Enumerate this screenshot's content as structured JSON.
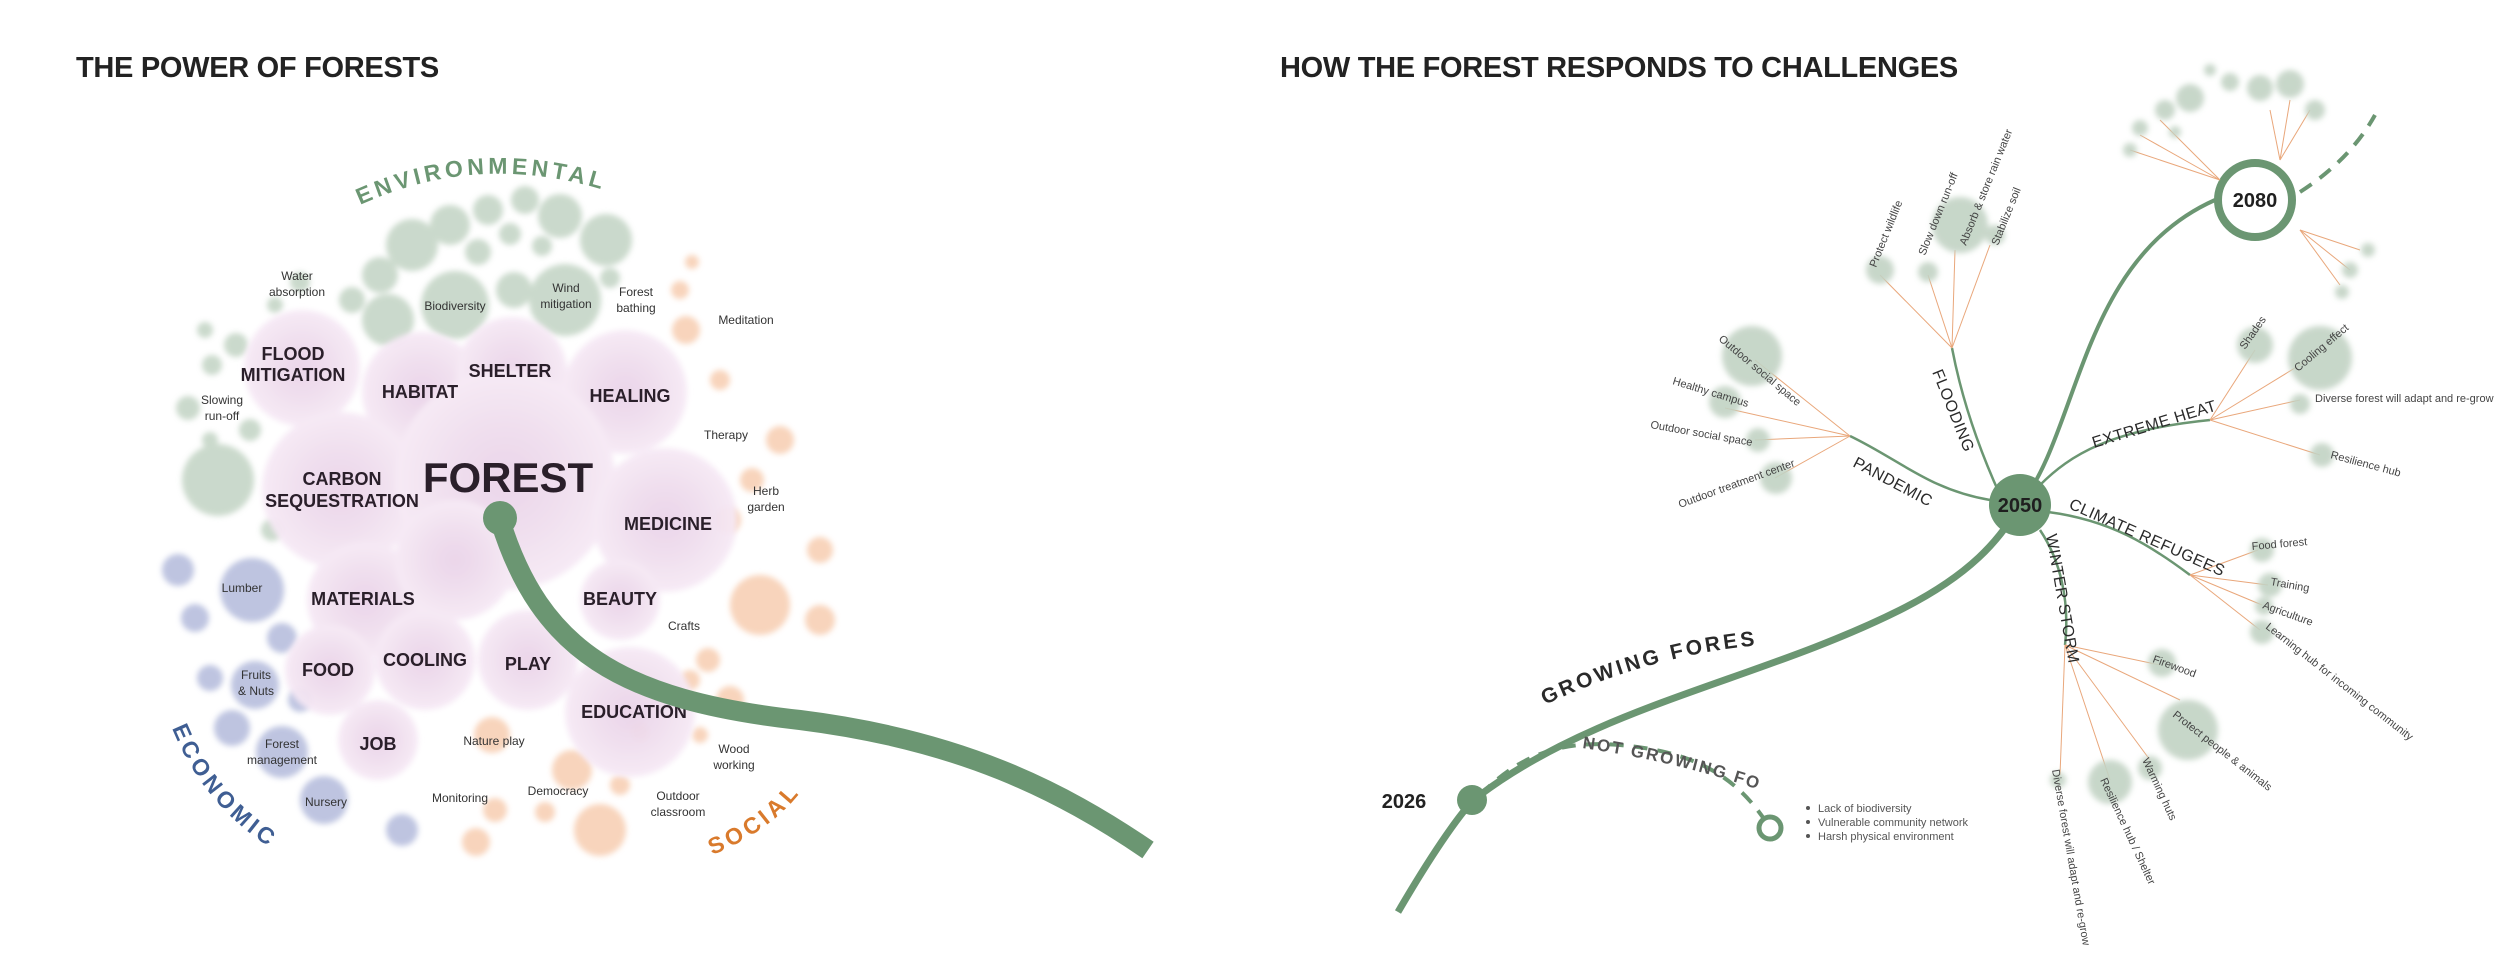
{
  "titles": {
    "left": "THE POWER OF FORESTS",
    "right": "HOW THE FOREST RESPONDS TO CHALLENGES"
  },
  "colors": {
    "green": "#6b9672",
    "environmental": "#b9cdbb",
    "social": "#f6c6a6",
    "economic": "#aeb6d9",
    "core": "#e8cfe5",
    "orange_accent": "#d97a2c",
    "blue_accent": "#3f5e93"
  },
  "power": {
    "center": "FOREST",
    "categories": {
      "environmental": "ENVIRONMENTAL",
      "economic": "ECONOMIC",
      "social": "SOCIAL"
    },
    "core": [
      [
        "FLOOD",
        "MITIGATION"
      ],
      [
        "HABITAT"
      ],
      [
        "SHELTER"
      ],
      [
        "HEALING"
      ],
      [
        "CARBON",
        "SEQUESTRATION"
      ],
      [
        "MEDICINE"
      ],
      [
        "MATERIALS"
      ],
      [
        "BEAUTY"
      ],
      [
        "FOOD"
      ],
      [
        "COOLING"
      ],
      [
        "PLAY"
      ],
      [
        "EDUCATION"
      ],
      [
        "JOB"
      ]
    ],
    "environmental_items": [
      [
        "Water",
        "absorption"
      ],
      [
        "Biodiversity"
      ],
      [
        "Wind",
        "mitigation"
      ],
      [
        "Forest",
        "bathing"
      ],
      [
        "Slowing",
        "run-off"
      ]
    ],
    "social_items": [
      [
        "Meditation"
      ],
      [
        "Therapy"
      ],
      [
        "Herb",
        "garden"
      ],
      [
        "Crafts"
      ],
      [
        "Wood",
        "working"
      ],
      [
        "Nature play"
      ],
      [
        "Democracy"
      ],
      [
        "Monitoring"
      ],
      [
        "Outdoor",
        "classroom"
      ]
    ],
    "economic_items": [
      [
        "Lumber"
      ],
      [
        "Fruits",
        "& Nuts"
      ],
      [
        "Forest",
        "management"
      ],
      [
        "Nursery"
      ]
    ]
  },
  "responds": {
    "years": [
      "2026",
      "2050",
      "2080"
    ],
    "growing": "GROWING FOREST",
    "not_growing": "NOT GROWING FOREST",
    "not_growing_notes": [
      "Lack of biodiversity",
      "Vulnerable community network",
      "Harsh physical environment"
    ],
    "branches": {
      "flooding": {
        "label": "FLOODING",
        "items": [
          "Protect wildlife",
          "Slow down run-off",
          "Absorb & store rain water",
          "Stabilize soil"
        ]
      },
      "pandemic": {
        "label": "PANDEMIC",
        "items": [
          "Outdoor social space",
          "Healthy campus",
          "Outdoor social space",
          "Outdoor treatment center"
        ]
      },
      "extreme_heat": {
        "label": "EXTREME HEAT",
        "items": [
          "Shades",
          "Cooling effect",
          "Diverse forest will adapt and re-grow",
          "Resilience hub"
        ]
      },
      "climate_refugees": {
        "label": "CLIMATE REFUGEES",
        "items": [
          "Food forest",
          "Training",
          "Agriculture",
          "Learning hub for incoming community"
        ]
      },
      "winter_storm": {
        "label": "WINTER STORM",
        "items": [
          "Firewood",
          "Protect people & animals",
          "Warming huts",
          "Resilience hub / Shelter",
          "Diverse forest will adapt and re-grow"
        ]
      }
    }
  }
}
